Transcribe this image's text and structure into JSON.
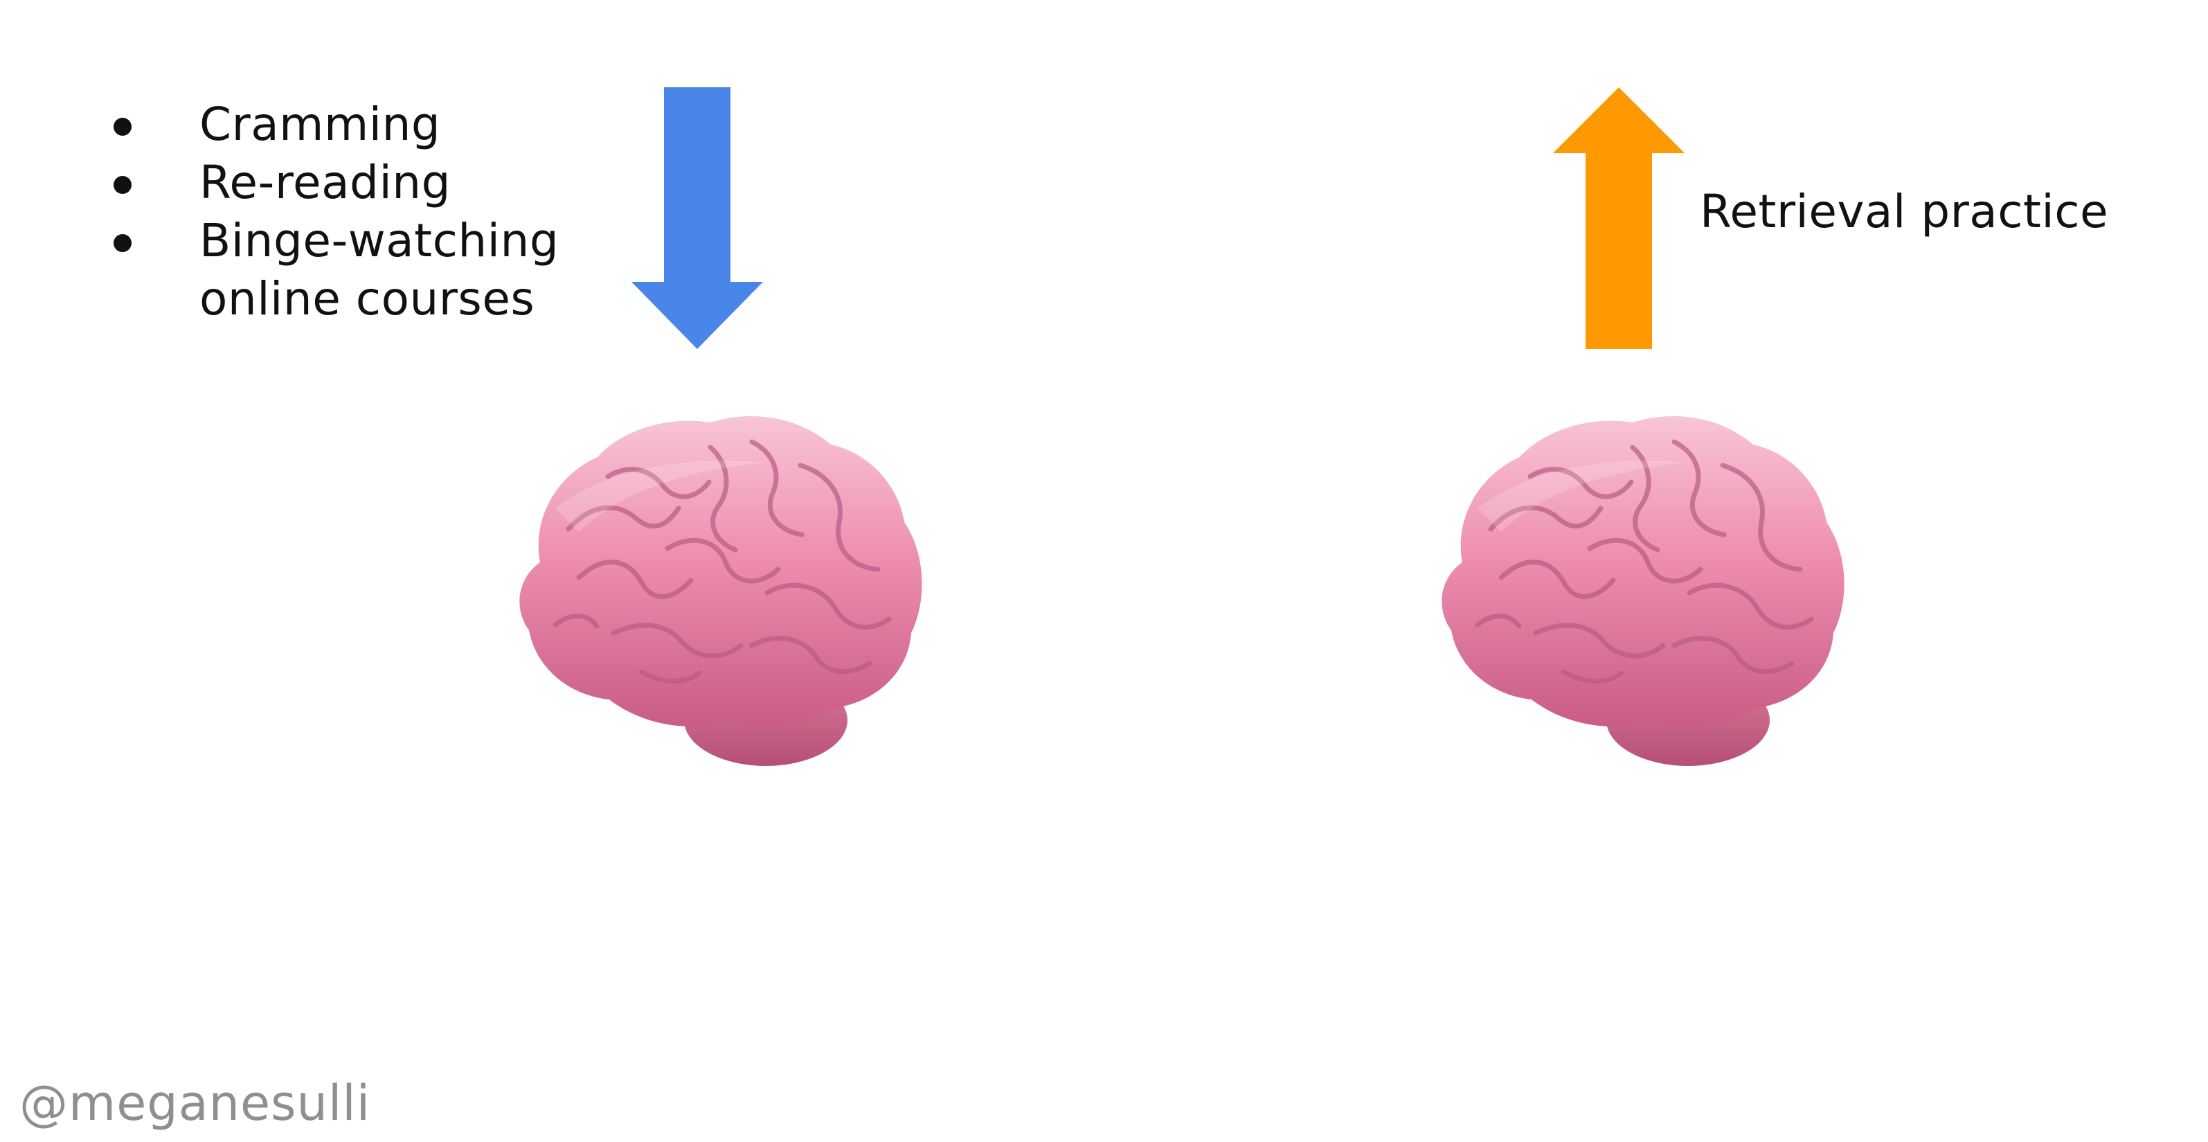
{
  "left_column": {
    "bullets": [
      "Cramming",
      "Re-reading",
      "Binge-watching",
      "online courses"
    ]
  },
  "right_column": {
    "label": "Retrieval practice"
  },
  "arrows": {
    "down": {
      "icon": "arrow-down-icon",
      "color": "#4A86E8"
    },
    "up": {
      "icon": "arrow-up-icon",
      "color": "#FF9900"
    }
  },
  "watermark": "@meganesulli",
  "colors": {
    "brain_main": "#EE8FAF",
    "brain_shadow": "#C95C86",
    "brain_highlight": "#F8C5D7"
  }
}
